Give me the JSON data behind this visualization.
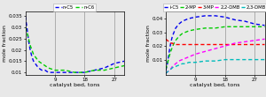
{
  "left": {
    "legend": [
      "n-C5",
      "n-C6"
    ],
    "legend_colors": [
      "#0000EE",
      "#00CC00"
    ],
    "x": [
      0,
      0.5,
      1,
      1.5,
      2,
      2.5,
      3,
      4,
      5,
      6,
      7,
      9,
      12,
      15,
      18,
      21,
      24,
      27,
      30
    ],
    "nC5": [
      0.035,
      0.03,
      0.024,
      0.02,
      0.017,
      0.015,
      0.014,
      0.012,
      0.011,
      0.011,
      0.01,
      0.01,
      0.01,
      0.01,
      0.01,
      0.011,
      0.012,
      0.014,
      0.015
    ],
    "nC6": [
      0.03,
      0.028,
      0.025,
      0.022,
      0.02,
      0.018,
      0.017,
      0.015,
      0.014,
      0.013,
      0.012,
      0.011,
      0.011,
      0.01,
      0.01,
      0.011,
      0.011,
      0.012,
      0.013
    ],
    "ylim": [
      0.009,
      0.037
    ],
    "ytick_vals": [
      0.01,
      0.015,
      0.02,
      0.025,
      0.03,
      0.035
    ],
    "ytick_labels": [
      "0.01",
      "0.015",
      "0.02",
      "0.025",
      "0.03",
      "0.035"
    ],
    "xticks": [
      9,
      18,
      27
    ],
    "xlim": [
      0,
      30
    ],
    "xlabel": "catalyst bed, tons",
    "ylabel": "mole fraction"
  },
  "right": {
    "legend": [
      "i-C5",
      "2-MP",
      "3-MP",
      "2,2-DMB",
      "2,3-DMB"
    ],
    "legend_colors": [
      "#0000EE",
      "#00CC00",
      "#FF0000",
      "#FF00FF",
      "#00BBBB"
    ],
    "x": [
      0,
      0.5,
      1,
      1.5,
      2,
      2.5,
      3,
      4,
      5,
      6,
      7,
      9,
      12,
      15,
      18,
      21,
      24,
      27,
      30
    ],
    "iC5": [
      0.002,
      0.007,
      0.015,
      0.022,
      0.027,
      0.03,
      0.033,
      0.036,
      0.038,
      0.039,
      0.04,
      0.041,
      0.042,
      0.042,
      0.041,
      0.039,
      0.038,
      0.036,
      0.035
    ],
    "MP2": [
      0.003,
      0.007,
      0.012,
      0.016,
      0.019,
      0.022,
      0.024,
      0.027,
      0.029,
      0.03,
      0.031,
      0.032,
      0.033,
      0.033,
      0.034,
      0.034,
      0.034,
      0.034,
      0.034
    ],
    "MP3": [
      0.025,
      0.024,
      0.023,
      0.022,
      0.022,
      0.021,
      0.021,
      0.021,
      0.021,
      0.021,
      0.021,
      0.021,
      0.021,
      0.021,
      0.021,
      0.021,
      0.021,
      0.021,
      0.021
    ],
    "DMB22": [
      0.0,
      0.001,
      0.002,
      0.003,
      0.005,
      0.006,
      0.007,
      0.009,
      0.01,
      0.011,
      0.012,
      0.014,
      0.016,
      0.018,
      0.02,
      0.022,
      0.023,
      0.024,
      0.025
    ],
    "DMB23": [
      0.0,
      0.001,
      0.002,
      0.003,
      0.004,
      0.005,
      0.005,
      0.006,
      0.007,
      0.007,
      0.008,
      0.008,
      0.009,
      0.009,
      0.01,
      0.01,
      0.01,
      0.01,
      0.01
    ],
    "ylim": [
      -0.001,
      0.045
    ],
    "ytick_vals": [
      0.01,
      0.02,
      0.03,
      0.04
    ],
    "ytick_labels": [
      "0.01",
      "0.02",
      "0.03",
      "0.04"
    ],
    "xticks": [
      9,
      18,
      27
    ],
    "xlim": [
      0,
      30
    ],
    "xlabel": "catalyst bed, tons",
    "ylabel": "mole fraction"
  },
  "bg_color": "#e8e8e8",
  "plot_bg": "#e8e8e8",
  "fontsize": 4.5,
  "tick_fontsize": 4.0,
  "legend_fontsize": 3.8,
  "linewidth": 1.0,
  "dash_seq": [
    3,
    2
  ]
}
